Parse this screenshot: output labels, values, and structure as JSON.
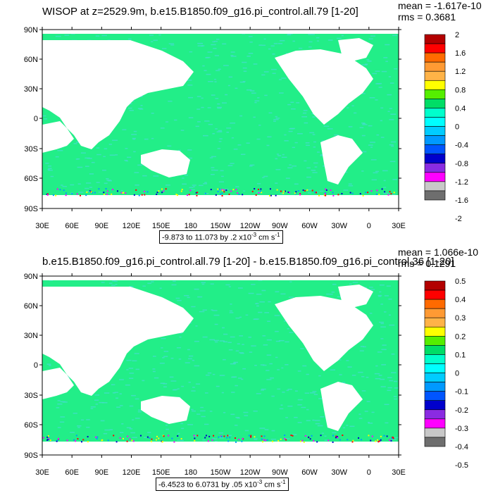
{
  "panels": [
    {
      "title": "WISOP at z=2529.9m, b.e15.B1850.f09_g16.pi_control.all.79 [1-20]",
      "stats": {
        "mean": "mean = -1.617e-10",
        "rms": "rms = 0.3681"
      },
      "range": {
        "text": "-9.873 to 11.073 by .2 x10",
        "exp": "-3",
        "unit": " cm s",
        "unit_exp": "-1"
      },
      "colorbar_labels": [
        "2",
        "1.6",
        "1.2",
        "0.8",
        "0.4",
        "0",
        "-0.4",
        "-0.8",
        "-1.2",
        "-1.6",
        "-2"
      ]
    },
    {
      "title": "b.e15.B1850.f09_g16.pi_control.all.79 [1-20] - b.e15.B1850.f09_g16.pi_control.36 [1-20]",
      "stats": {
        "mean": "mean = 1.066e-10",
        "rms": "rms = 0.1291"
      },
      "range": {
        "text": "-6.4523 to 6.0731 by .05 x10",
        "exp": "-3",
        "unit": " cm s",
        "unit_exp": "-1"
      },
      "colorbar_labels": [
        "0.5",
        "0.4",
        "0.3",
        "0.2",
        "0.1",
        "0",
        "-0.1",
        "-0.2",
        "-0.3",
        "-0.4",
        "-0.5"
      ]
    }
  ],
  "lat_labels": [
    "90N",
    "60N",
    "30N",
    "0",
    "30S",
    "60S",
    "90S"
  ],
  "lon_labels": [
    "30E",
    "60E",
    "90E",
    "120E",
    "150E",
    "180",
    "150W",
    "120W",
    "90W",
    "60W",
    "30W",
    "0",
    "30E"
  ],
  "colorbar_colors": [
    "#b30000",
    "#ff0000",
    "#ff6a00",
    "#ff9a33",
    "#ffb347",
    "#ffff00",
    "#55ee00",
    "#00dd66",
    "#00ffcc",
    "#00ffff",
    "#00ccff",
    "#0099ff",
    "#0055ff",
    "#0000cc",
    "#8a2be2",
    "#ff00ff",
    "#c8c8c8",
    "#6e6e6e"
  ],
  "ocean_fill": "#22ee88",
  "ocean_texture": "#44ddcc",
  "land_fill": "#ffffff"
}
